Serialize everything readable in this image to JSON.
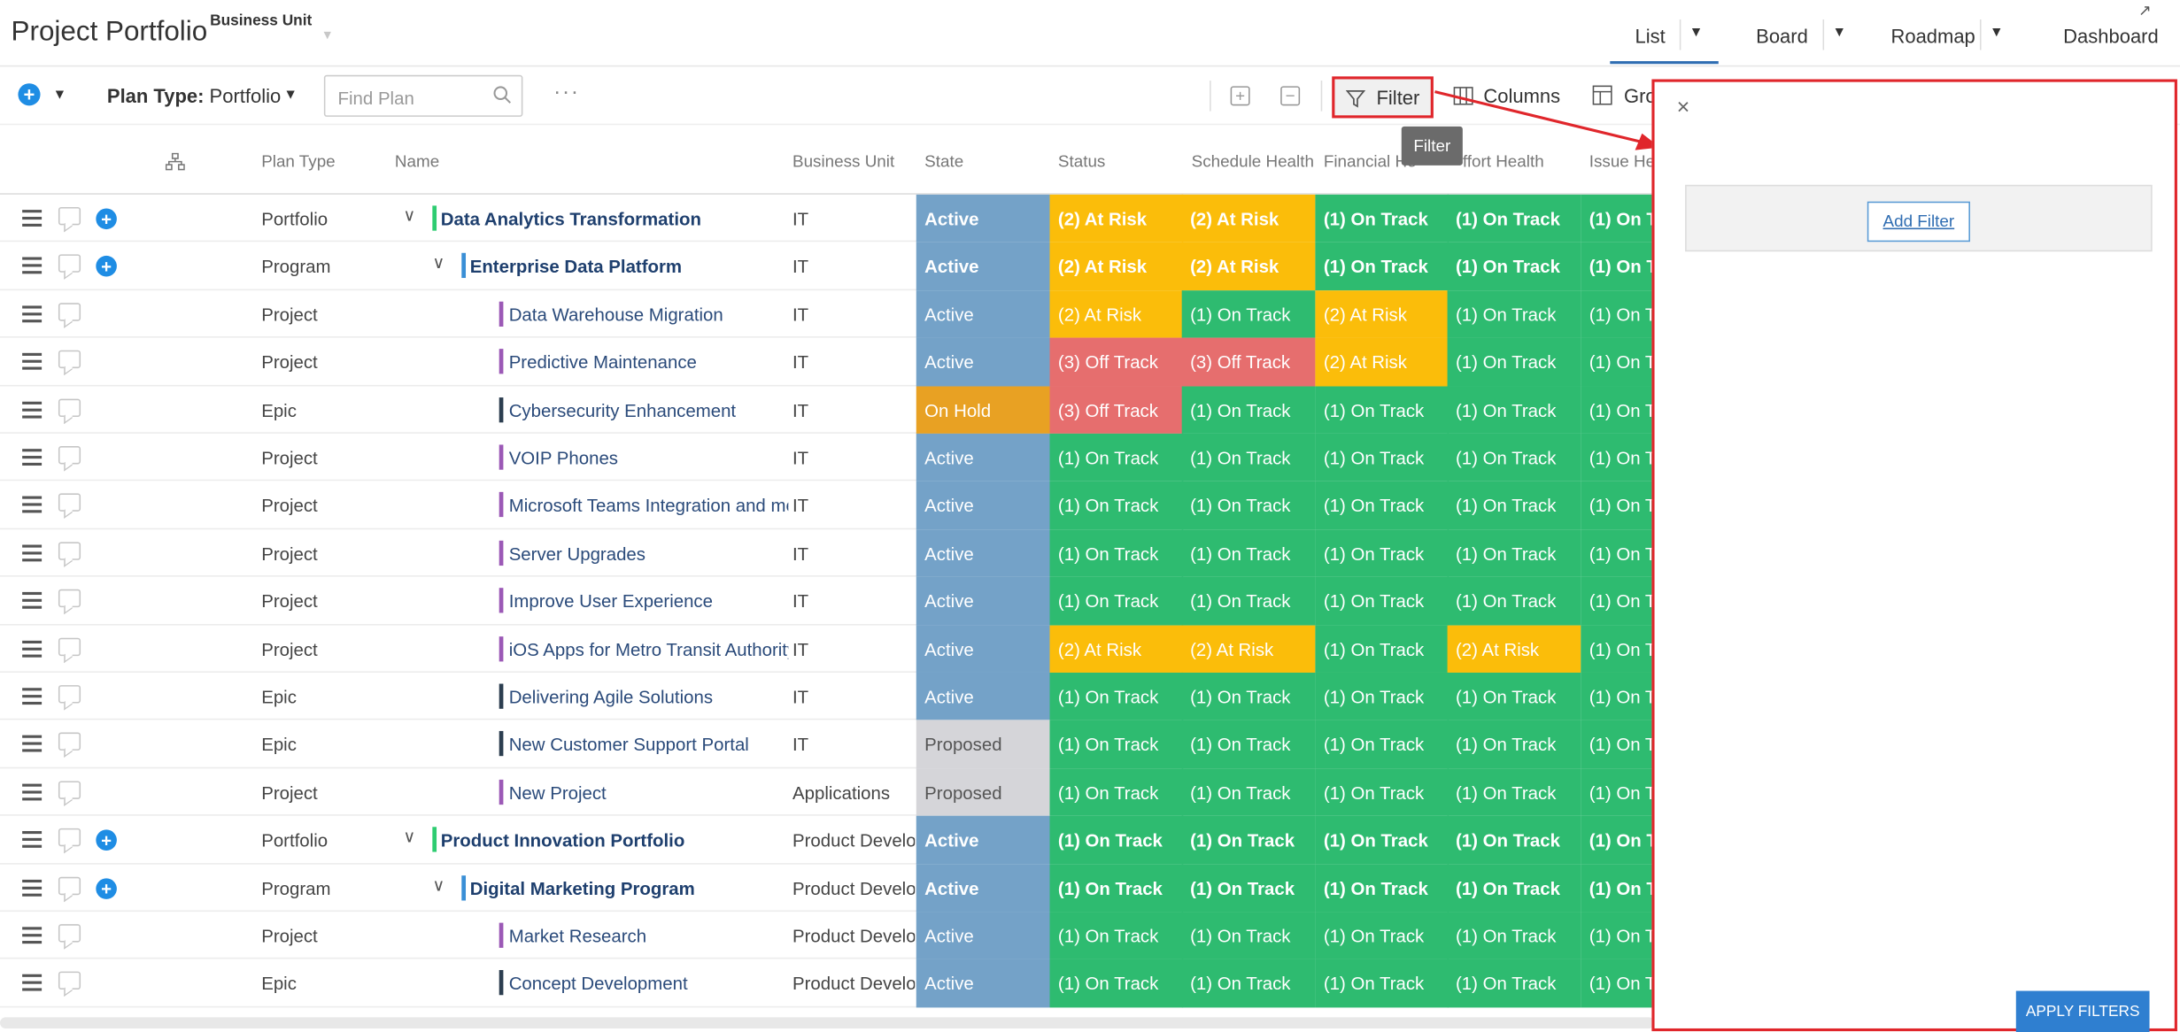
{
  "app": {
    "title": "Project Portfolio",
    "business_unit_label": "Business Unit"
  },
  "views": {
    "list": "List",
    "board": "Board",
    "roadmap": "Roadmap",
    "dashboard": "Dashboard",
    "active": "List"
  },
  "toolbar": {
    "plan_type_label": "Plan Type:",
    "plan_type_value": "Portfolio",
    "search_placeholder": "Find Plan",
    "more": "···",
    "filter": "Filter",
    "columns": "Columns",
    "group": "Gro",
    "tooltip": "Filter"
  },
  "columns": [
    "Plan Type",
    "Name",
    "Business Unit",
    "State",
    "Status",
    "Schedule Health",
    "Financial He",
    "ffort Health",
    "Issue He"
  ],
  "colors": {
    "active": "#74a2c8",
    "on_hold": "#e8a123",
    "proposed": "#d5d5d9",
    "on_track": "#2ebb70",
    "at_risk": "#fbbd0a",
    "off_track": "#e66e6e",
    "accent": "#1f8de4",
    "highlight": "#e0262b",
    "portfolio_bar": "#2ecc71",
    "program_bar": "#3a8fd6",
    "project_bar": "#9b59b6",
    "epic_bar": "#2c3e50"
  },
  "rows": [
    {
      "type": "Portfolio",
      "name": "Data Analytics Transformation",
      "bu": "IT",
      "state": "Active",
      "status": "(2) At Risk",
      "schedule": "(2) At Risk",
      "financial": "(1) On Track",
      "effort": "(1) On Track",
      "issue": "(1) On T",
      "level": 0,
      "bold": true
    },
    {
      "type": "Program",
      "name": "Enterprise Data Platform",
      "bu": "IT",
      "state": "Active",
      "status": "(2) At Risk",
      "schedule": "(2) At Risk",
      "financial": "(1) On Track",
      "effort": "(1) On Track",
      "issue": "(1) On T",
      "level": 1,
      "bold": true
    },
    {
      "type": "Project",
      "name": "Data Warehouse Migration",
      "bu": "IT",
      "state": "Active",
      "status": "(2) At Risk",
      "schedule": "(1) On Track",
      "financial": "(2) At Risk",
      "effort": "(1) On Track",
      "issue": "(1) On T",
      "level": 2,
      "bold": false
    },
    {
      "type": "Project",
      "name": "Predictive Maintenance",
      "bu": "IT",
      "state": "Active",
      "status": "(3) Off Track",
      "schedule": "(3) Off Track",
      "financial": "(2) At Risk",
      "effort": "(1) On Track",
      "issue": "(1) On T",
      "level": 2,
      "bold": false
    },
    {
      "type": "Epic",
      "name": "Cybersecurity Enhancement",
      "bu": "IT",
      "state": "On Hold",
      "status": "(3) Off Track",
      "schedule": "(1) On Track",
      "financial": "(1) On Track",
      "effort": "(1) On Track",
      "issue": "(1) On T",
      "level": 2,
      "bold": false
    },
    {
      "type": "Project",
      "name": "VOIP Phones",
      "bu": "IT",
      "state": "Active",
      "status": "(1) On Track",
      "schedule": "(1) On Track",
      "financial": "(1) On Track",
      "effort": "(1) On Track",
      "issue": "(1) On T",
      "level": 2,
      "bold": false
    },
    {
      "type": "Project",
      "name": "Microsoft Teams Integration and me",
      "bu": "IT",
      "state": "Active",
      "status": "(1) On Track",
      "schedule": "(1) On Track",
      "financial": "(1) On Track",
      "effort": "(1) On Track",
      "issue": "(1) On T",
      "level": 2,
      "bold": false
    },
    {
      "type": "Project",
      "name": "Server Upgrades",
      "bu": "IT",
      "state": "Active",
      "status": "(1) On Track",
      "schedule": "(1) On Track",
      "financial": "(1) On Track",
      "effort": "(1) On Track",
      "issue": "(1) On T",
      "level": 2,
      "bold": false
    },
    {
      "type": "Project",
      "name": "Improve User Experience",
      "bu": "IT",
      "state": "Active",
      "status": "(1) On Track",
      "schedule": "(1) On Track",
      "financial": "(1) On Track",
      "effort": "(1) On Track",
      "issue": "(1) On T",
      "level": 2,
      "bold": false
    },
    {
      "type": "Project",
      "name": "iOS Apps for Metro Transit Authority",
      "bu": "IT",
      "state": "Active",
      "status": "(2) At Risk",
      "schedule": "(2) At Risk",
      "financial": "(1) On Track",
      "effort": "(2) At Risk",
      "issue": "(1) On T",
      "level": 2,
      "bold": false
    },
    {
      "type": "Epic",
      "name": "Delivering Agile Solutions",
      "bu": "IT",
      "state": "Active",
      "status": "(1) On Track",
      "schedule": "(1) On Track",
      "financial": "(1) On Track",
      "effort": "(1) On Track",
      "issue": "(1) On T",
      "level": 2,
      "bold": false
    },
    {
      "type": "Epic",
      "name": "New Customer Support Portal",
      "bu": "IT",
      "state": "Proposed",
      "status": "(1) On Track",
      "schedule": "(1) On Track",
      "financial": "(1) On Track",
      "effort": "(1) On Track",
      "issue": "(1) On T",
      "level": 2,
      "bold": false
    },
    {
      "type": "Project",
      "name": "New Project",
      "bu": "Applications",
      "state": "Proposed",
      "status": "(1) On Track",
      "schedule": "(1) On Track",
      "financial": "(1) On Track",
      "effort": "(1) On Track",
      "issue": "(1) On T",
      "level": 2,
      "bold": false
    },
    {
      "type": "Portfolio",
      "name": "Product Innovation Portfolio",
      "bu": "Product Develop",
      "state": "Active",
      "status": "(1) On Track",
      "schedule": "(1) On Track",
      "financial": "(1) On Track",
      "effort": "(1) On Track",
      "issue": "(1) On T",
      "level": 0,
      "bold": true
    },
    {
      "type": "Program",
      "name": "Digital Marketing Program",
      "bu": "Product Develop",
      "state": "Active",
      "status": "(1) On Track",
      "schedule": "(1) On Track",
      "financial": "(1) On Track",
      "effort": "(1) On Track",
      "issue": "(1) On T",
      "level": 1,
      "bold": true
    },
    {
      "type": "Project",
      "name": "Market Research",
      "bu": "Product Develop",
      "state": "Active",
      "status": "(1) On Track",
      "schedule": "(1) On Track",
      "financial": "(1) On Track",
      "effort": "(1) On Track",
      "issue": "(1) On T",
      "level": 2,
      "bold": false
    },
    {
      "type": "Epic",
      "name": "Concept Development",
      "bu": "Product Develop",
      "state": "Active",
      "status": "(1) On Track",
      "schedule": "(1) On Track",
      "financial": "(1) On Track",
      "effort": "(1) On Track",
      "issue": "(1) On T",
      "level": 2,
      "bold": false
    }
  ],
  "filter_panel": {
    "close": "×",
    "add_filter": "Add Filter",
    "apply": "APPLY FILTERS"
  }
}
